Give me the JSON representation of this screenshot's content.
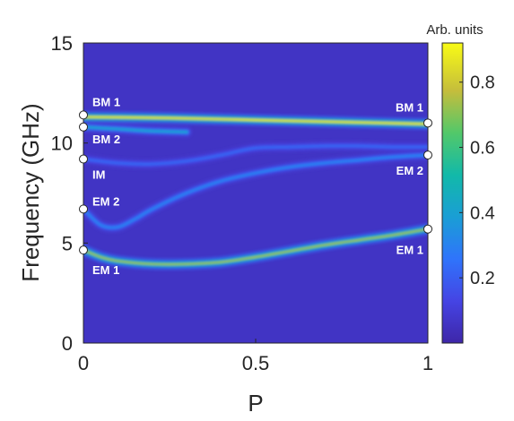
{
  "chart_data": {
    "type": "heatmap",
    "xlabel": "P",
    "ylabel": "Frequency (GHz)",
    "xlim": [
      0,
      1
    ],
    "ylim": [
      0,
      15
    ],
    "x_ticks": [
      "0",
      "0.5",
      "1"
    ],
    "y_ticks": [
      "0",
      "5",
      "10",
      "15"
    ],
    "colorbar": {
      "title": "Arb. units",
      "range": [
        0,
        0.92
      ],
      "ticks": [
        "0.2",
        "0.4",
        "0.6",
        "0.8"
      ],
      "colormap": "parula"
    },
    "background_level": 0.06,
    "series": [
      {
        "name": "BM 1",
        "intensity": 0.9,
        "x": [
          0,
          0.25,
          0.5,
          0.75,
          1
        ],
        "y": [
          11.3,
          11.25,
          11.15,
          11.05,
          10.95
        ]
      },
      {
        "name": "BM 2",
        "intensity": 0.4,
        "x": [
          0,
          0.1,
          0.2,
          0.3
        ],
        "y": [
          10.8,
          10.7,
          10.6,
          10.55
        ]
      },
      {
        "name": "IM",
        "intensity": 0.22,
        "x": [
          0,
          0.1,
          0.2,
          0.3,
          0.4,
          0.5,
          0.6,
          0.7,
          0.8,
          0.9,
          1
        ],
        "y": [
          9.2,
          9.0,
          8.95,
          9.1,
          9.4,
          9.75,
          9.8,
          9.85,
          9.85,
          9.8,
          9.8
        ]
      },
      {
        "name": "EM 2",
        "intensity": 0.3,
        "x": [
          0,
          0.05,
          0.1,
          0.15,
          0.2,
          0.3,
          0.4,
          0.5,
          0.6,
          0.7,
          0.8,
          0.9,
          1
        ],
        "y": [
          6.7,
          5.9,
          5.8,
          6.2,
          6.7,
          7.5,
          8.1,
          8.5,
          8.8,
          9.0,
          9.15,
          9.3,
          9.4
        ]
      },
      {
        "name": "EM 1",
        "intensity": 0.75,
        "x": [
          0,
          0.05,
          0.1,
          0.2,
          0.3,
          0.4,
          0.5,
          0.6,
          0.7,
          0.8,
          0.9,
          1
        ],
        "y": [
          4.65,
          4.3,
          4.1,
          3.95,
          3.95,
          4.05,
          4.3,
          4.6,
          4.9,
          5.15,
          5.4,
          5.7
        ]
      }
    ],
    "annotations": [
      {
        "text": "BM 1",
        "x": 0,
        "y": 11.4,
        "side": "left"
      },
      {
        "text": "BM 2",
        "x": 0,
        "y": 10.8,
        "side": "left"
      },
      {
        "text": "IM",
        "x": 0,
        "y": 9.2,
        "side": "left"
      },
      {
        "text": "EM 2",
        "x": 0,
        "y": 6.7,
        "side": "left"
      },
      {
        "text": "EM 1",
        "x": 0,
        "y": 4.65,
        "side": "left"
      },
      {
        "text": "BM 1",
        "x": 1,
        "y": 11.0,
        "side": "right"
      },
      {
        "text": "EM 2",
        "x": 1,
        "y": 9.4,
        "side": "right"
      },
      {
        "text": "EM 1",
        "x": 1,
        "y": 5.7,
        "side": "right"
      }
    ]
  }
}
